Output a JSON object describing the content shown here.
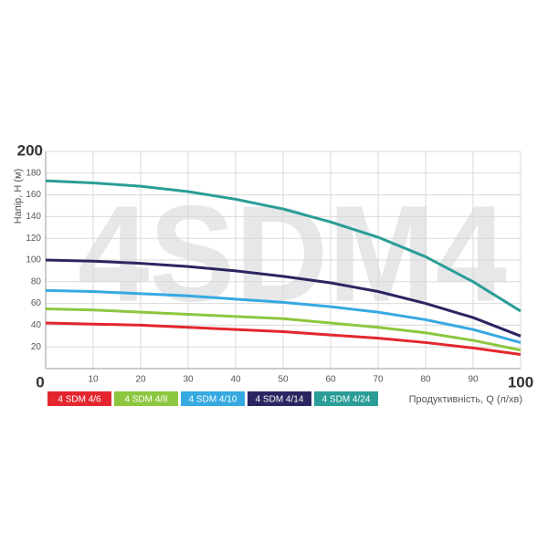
{
  "chart_data": {
    "type": "line",
    "watermark": "4SDM4",
    "x_label": "Продуктивність, Q (л/хв)",
    "y_label": "Напір, H (м)",
    "x": [
      0,
      10,
      20,
      30,
      40,
      50,
      60,
      70,
      80,
      90,
      100
    ],
    "xlim": [
      0,
      100
    ],
    "xticks": [
      0,
      10,
      20,
      30,
      40,
      50,
      60,
      70,
      80,
      90,
      100
    ],
    "ylim": [
      0,
      200
    ],
    "yticks": [
      20,
      40,
      60,
      80,
      100,
      120,
      140,
      160,
      180,
      200
    ],
    "grid": true,
    "series": [
      {
        "name": "4 SDM 4/6",
        "color": "#e3262e",
        "values": [
          42,
          41,
          40,
          38,
          36,
          34,
          31,
          28,
          24,
          19,
          13
        ]
      },
      {
        "name": "4 SDM 4/8",
        "color": "#8dc63f",
        "values": [
          55,
          54,
          52,
          50,
          48,
          46,
          42,
          38,
          33,
          26,
          17
        ]
      },
      {
        "name": "4 SDM 4/10",
        "color": "#36a9e1",
        "values": [
          72,
          71,
          69,
          67,
          64,
          61,
          57,
          52,
          45,
          36,
          24
        ]
      },
      {
        "name": "4 SDM 4/14",
        "color": "#2b2561",
        "values": [
          100,
          99,
          97,
          94,
          90,
          85,
          79,
          71,
          60,
          47,
          30
        ]
      },
      {
        "name": "4 SDM 4/24",
        "color": "#2a9d97",
        "values": [
          173,
          171,
          168,
          163,
          156,
          147,
          135,
          121,
          103,
          80,
          53
        ]
      }
    ]
  }
}
